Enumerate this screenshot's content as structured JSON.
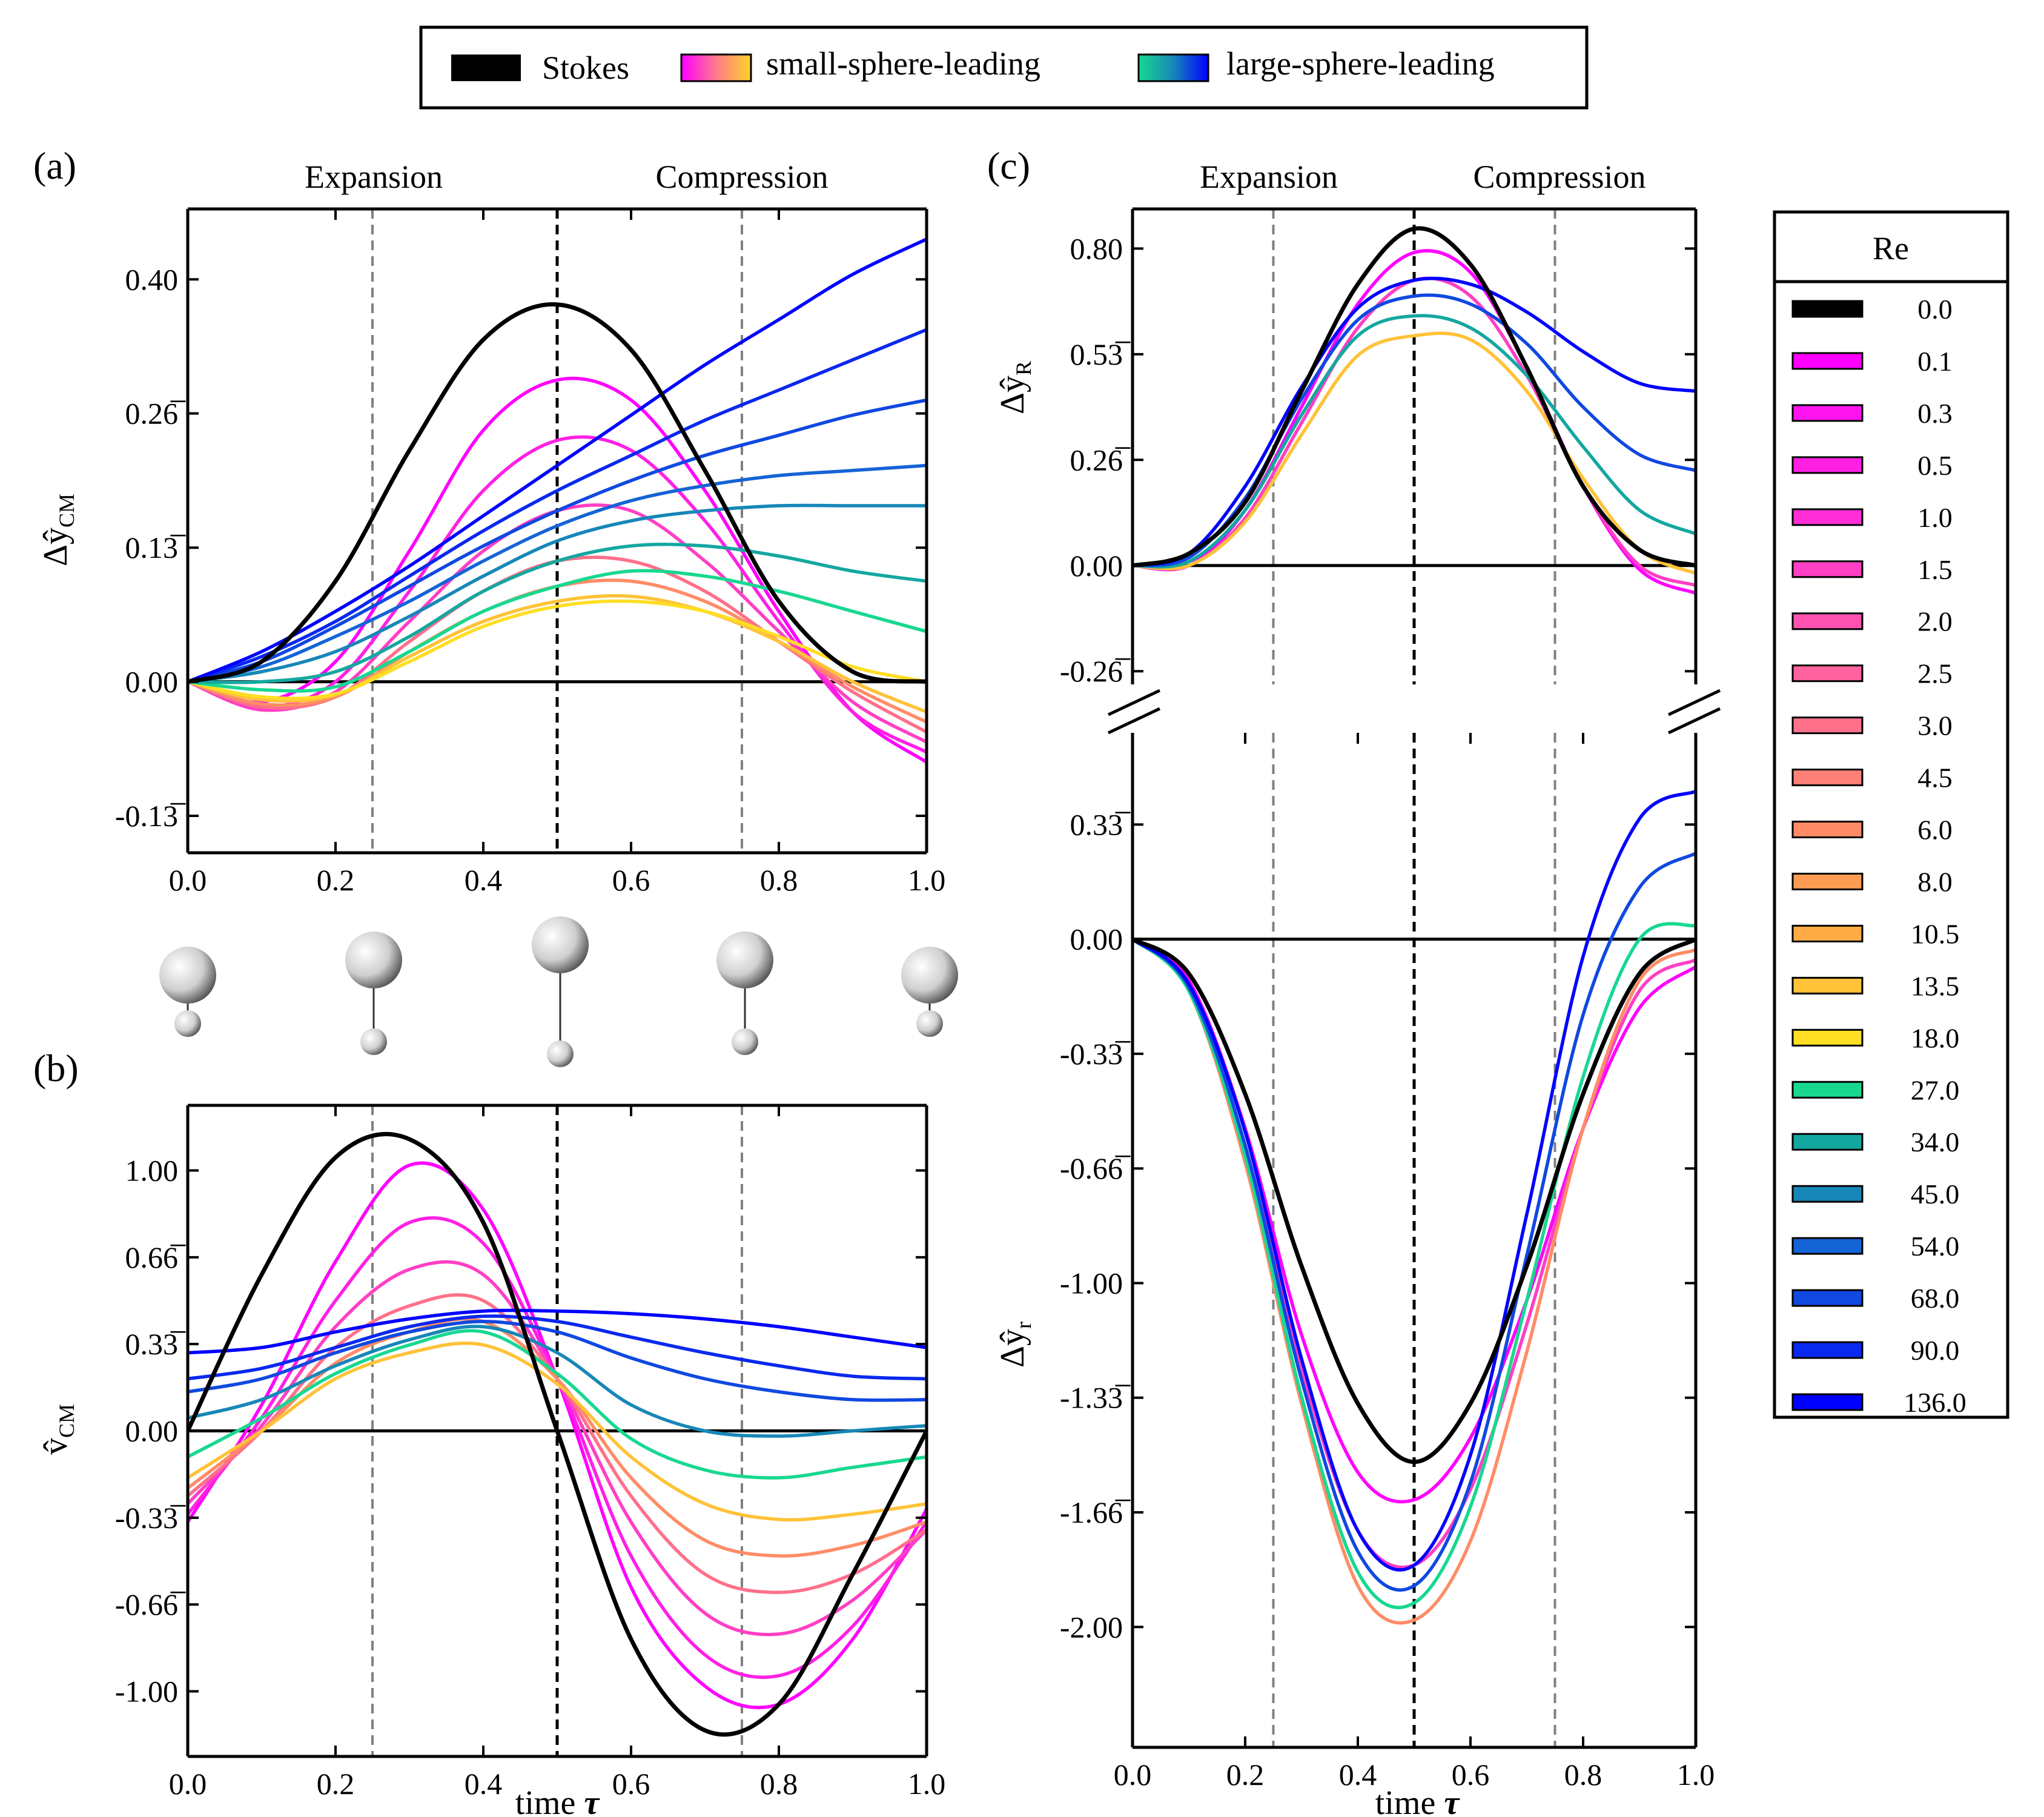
{
  "legend": {
    "stokes": "Stokes",
    "small": "small-sphere-leading",
    "large": "large-sphere-leading"
  },
  "panels": {
    "a": "(a)",
    "b": "(b)",
    "c": "(c)"
  },
  "phases": {
    "expansion": "Expansion",
    "compression": "Compression"
  },
  "axes": {
    "xlabel": "time",
    "xvar": "τ",
    "a_ylabel": "Δŷ",
    "a_ysub": "CM",
    "b_ylabel": "v̂",
    "b_ysub": "CM",
    "cR_ylabel": "Δŷ",
    "cR_ysub": "R",
    "cr_ylabel": "Δŷ",
    "cr_ysub": "r"
  },
  "colors": {
    "stokes": "#000000",
    "vline_center": "#000000",
    "vline_quarter": "#808080",
    "small_gradient": [
      "#ff00ff",
      "#ff55c8",
      "#ff7a8c",
      "#ff9a5a",
      "#ffd42a"
    ],
    "large_gradient": [
      "#18d890",
      "#14a7a0",
      "#1787b8",
      "#1464d6",
      "#0a32e8",
      "#0000ff"
    ]
  },
  "re_legend": {
    "title": "Re",
    "entries": [
      {
        "re": "0.0",
        "color": "#000000"
      },
      {
        "re": "0.1",
        "color": "#ff00ff"
      },
      {
        "re": "0.3",
        "color": "#ff14f0"
      },
      {
        "re": "0.5",
        "color": "#ff20e4"
      },
      {
        "re": "1.0",
        "color": "#ff2ed6"
      },
      {
        "re": "1.5",
        "color": "#ff3fc4"
      },
      {
        "re": "2.0",
        "color": "#ff52b0"
      },
      {
        "re": "2.5",
        "color": "#ff629e"
      },
      {
        "re": "3.0",
        "color": "#ff708a"
      },
      {
        "re": "4.5",
        "color": "#ff8078"
      },
      {
        "re": "6.0",
        "color": "#ff8c66"
      },
      {
        "re": "8.0",
        "color": "#ff9c54"
      },
      {
        "re": "10.5",
        "color": "#ffac46"
      },
      {
        "re": "13.5",
        "color": "#ffc238"
      },
      {
        "re": "18.0",
        "color": "#ffde24"
      },
      {
        "re": "27.0",
        "color": "#18d890"
      },
      {
        "re": "34.0",
        "color": "#14a7a0"
      },
      {
        "re": "45.0",
        "color": "#1787b8"
      },
      {
        "re": "54.0",
        "color": "#1464d6"
      },
      {
        "re": "68.0",
        "color": "#1048e0"
      },
      {
        "re": "90.0",
        "color": "#0a28ee"
      },
      {
        "re": "136.0",
        "color": "#0000ff"
      }
    ]
  },
  "chart_data": [
    {
      "panel": "(a)",
      "type": "line",
      "xlabel": "time τ",
      "ylabel": "Δŷ_CM",
      "xlim": [
        0,
        1
      ],
      "ylim": [
        -0.17,
        0.47
      ],
      "xticks": [
        "0.0",
        "0.2",
        "0.4",
        "0.6",
        "0.8",
        "1.0"
      ],
      "yticks": [
        {
          "v": 0.4,
          "label": "0.40"
        },
        {
          "v": 0.2667,
          "label": "0.26̅"
        },
        {
          "v": 0.1333,
          "label": "0.13̅"
        },
        {
          "v": 0.0,
          "label": "0.00"
        },
        {
          "v": -0.1333,
          "label": "-0.13̅"
        }
      ],
      "vlines": [
        0.25,
        0.5,
        0.75
      ],
      "x": [
        0,
        0.1,
        0.2,
        0.3,
        0.4,
        0.5,
        0.6,
        0.7,
        0.8,
        0.9,
        1.0
      ],
      "series": [
        {
          "re": "0.0",
          "values": [
            0,
            0.02,
            0.1,
            0.23,
            0.34,
            0.375,
            0.33,
            0.21,
            0.08,
            0.01,
            0.0
          ]
        },
        {
          "re": "0.1",
          "values": [
            0,
            -0.02,
            0.02,
            0.13,
            0.25,
            0.3,
            0.28,
            0.19,
            0.07,
            -0.03,
            -0.08
          ]
        },
        {
          "re": "0.5",
          "values": [
            0,
            -0.025,
            0.0,
            0.09,
            0.19,
            0.24,
            0.23,
            0.16,
            0.06,
            -0.03,
            -0.07
          ]
        },
        {
          "re": "1.5",
          "values": [
            0,
            -0.028,
            -0.01,
            0.06,
            0.13,
            0.17,
            0.17,
            0.12,
            0.05,
            -0.02,
            -0.06
          ]
        },
        {
          "re": "3.0",
          "values": [
            0,
            -0.025,
            -0.015,
            0.04,
            0.09,
            0.12,
            0.12,
            0.09,
            0.04,
            -0.01,
            -0.05
          ]
        },
        {
          "re": "6.0",
          "values": [
            0,
            -0.022,
            -0.015,
            0.03,
            0.07,
            0.095,
            0.1,
            0.08,
            0.04,
            -0.005,
            -0.04
          ]
        },
        {
          "re": "13.5",
          "values": [
            0,
            -0.018,
            -0.013,
            0.025,
            0.06,
            0.08,
            0.085,
            0.07,
            0.04,
            0.0,
            -0.03
          ]
        },
        {
          "re": "18.0",
          "values": [
            0,
            -0.015,
            -0.012,
            0.02,
            0.055,
            0.075,
            0.08,
            0.07,
            0.045,
            0.015,
            0.0
          ]
        },
        {
          "re": "27.0",
          "values": [
            0,
            -0.008,
            -0.005,
            0.03,
            0.07,
            0.095,
            0.11,
            0.105,
            0.09,
            0.07,
            0.05
          ]
        },
        {
          "re": "34.0",
          "values": [
            0,
            0.0,
            0.01,
            0.045,
            0.09,
            0.12,
            0.135,
            0.135,
            0.125,
            0.11,
            0.1
          ]
        },
        {
          "re": "45.0",
          "values": [
            0,
            0.01,
            0.03,
            0.065,
            0.105,
            0.14,
            0.16,
            0.17,
            0.175,
            0.175,
            0.175
          ]
        },
        {
          "re": "54.0",
          "values": [
            0,
            0.015,
            0.045,
            0.08,
            0.12,
            0.155,
            0.18,
            0.195,
            0.205,
            0.21,
            0.215
          ]
        },
        {
          "re": "68.0",
          "values": [
            0,
            0.02,
            0.055,
            0.095,
            0.135,
            0.17,
            0.2,
            0.225,
            0.245,
            0.265,
            0.28
          ]
        },
        {
          "re": "90.0",
          "values": [
            0,
            0.025,
            0.06,
            0.105,
            0.15,
            0.19,
            0.225,
            0.26,
            0.29,
            0.32,
            0.35
          ]
        },
        {
          "re": "136.0",
          "values": [
            0,
            0.03,
            0.07,
            0.115,
            0.165,
            0.215,
            0.265,
            0.315,
            0.36,
            0.405,
            0.44
          ]
        }
      ]
    },
    {
      "panel": "(b)",
      "type": "line",
      "xlabel": "time τ",
      "ylabel": "v̂_CM",
      "xlim": [
        0,
        1
      ],
      "ylim": [
        -1.25,
        1.25
      ],
      "xticks": [
        "0.0",
        "0.2",
        "0.4",
        "0.6",
        "0.8",
        "1.0"
      ],
      "yticks": [
        {
          "v": 1.0,
          "label": "1.00"
        },
        {
          "v": 0.6667,
          "label": "0.66̅"
        },
        {
          "v": 0.3333,
          "label": "0.33̅"
        },
        {
          "v": 0.0,
          "label": "0.00"
        },
        {
          "v": -0.3333,
          "label": "-0.33̅"
        },
        {
          "v": -0.6667,
          "label": "-0.66̅"
        },
        {
          "v": -1.0,
          "label": "-1.00"
        }
      ],
      "vlines": [
        0.25,
        0.5,
        0.75
      ],
      "x": [
        0,
        0.1,
        0.2,
        0.3,
        0.4,
        0.5,
        0.6,
        0.7,
        0.8,
        0.9,
        1.0
      ],
      "series": [
        {
          "re": "0.0",
          "values": [
            0.0,
            0.6,
            1.05,
            1.12,
            0.8,
            0.0,
            -0.8,
            -1.15,
            -1.05,
            -0.55,
            0.0
          ]
        },
        {
          "re": "0.1",
          "values": [
            -0.35,
            0.1,
            0.65,
            1.02,
            0.85,
            0.2,
            -0.6,
            -0.98,
            -1.05,
            -0.8,
            -0.3
          ]
        },
        {
          "re": "0.5",
          "values": [
            -0.32,
            0.05,
            0.5,
            0.8,
            0.72,
            0.2,
            -0.48,
            -0.86,
            -0.94,
            -0.75,
            -0.35
          ]
        },
        {
          "re": "1.5",
          "values": [
            -0.28,
            0.02,
            0.4,
            0.62,
            0.6,
            0.2,
            -0.35,
            -0.7,
            -0.78,
            -0.65,
            -0.38
          ]
        },
        {
          "re": "3.0",
          "values": [
            -0.25,
            0.0,
            0.32,
            0.48,
            0.5,
            0.2,
            -0.25,
            -0.55,
            -0.62,
            -0.55,
            -0.38
          ]
        },
        {
          "re": "6.0",
          "values": [
            -0.22,
            0.0,
            0.26,
            0.38,
            0.42,
            0.2,
            -0.18,
            -0.42,
            -0.48,
            -0.44,
            -0.35
          ]
        },
        {
          "re": "13.5",
          "values": [
            -0.18,
            0.0,
            0.2,
            0.3,
            0.33,
            0.18,
            -0.1,
            -0.28,
            -0.34,
            -0.32,
            -0.28
          ]
        },
        {
          "re": "27.0",
          "values": [
            -0.1,
            0.05,
            0.22,
            0.33,
            0.38,
            0.22,
            -0.03,
            -0.15,
            -0.18,
            -0.14,
            -0.1
          ]
        },
        {
          "re": "45.0",
          "values": [
            0.05,
            0.12,
            0.25,
            0.35,
            0.4,
            0.3,
            0.1,
            0.0,
            -0.02,
            0.0,
            0.02
          ]
        },
        {
          "re": "68.0",
          "values": [
            0.15,
            0.2,
            0.3,
            0.38,
            0.42,
            0.38,
            0.28,
            0.2,
            0.15,
            0.12,
            0.12
          ]
        },
        {
          "re": "90.0",
          "values": [
            0.2,
            0.24,
            0.32,
            0.4,
            0.44,
            0.42,
            0.36,
            0.3,
            0.25,
            0.21,
            0.2
          ]
        },
        {
          "re": "136.0",
          "values": [
            0.3,
            0.32,
            0.38,
            0.43,
            0.46,
            0.46,
            0.45,
            0.43,
            0.4,
            0.36,
            0.32
          ]
        }
      ]
    },
    {
      "panel": "(c) upper",
      "type": "line",
      "ylabel": "Δŷ_R",
      "xlim": [
        0,
        1
      ],
      "ylim": [
        -0.3,
        0.9
      ],
      "yticks": [
        {
          "v": 0.8,
          "label": "0.80"
        },
        {
          "v": 0.5333,
          "label": "0.53̅"
        },
        {
          "v": 0.2667,
          "label": "0.26̅"
        },
        {
          "v": 0.0,
          "label": "0.00"
        },
        {
          "v": -0.2667,
          "label": "-0.26̅"
        }
      ],
      "vlines": [
        0.25,
        0.5,
        0.75
      ],
      "x": [
        0,
        0.1,
        0.2,
        0.3,
        0.4,
        0.5,
        0.6,
        0.7,
        0.8,
        0.9,
        1.0
      ],
      "series": [
        {
          "re": "0.0",
          "values": [
            0,
            0.03,
            0.16,
            0.44,
            0.71,
            0.85,
            0.76,
            0.5,
            0.2,
            0.04,
            0.0
          ]
        },
        {
          "re": "0.1",
          "values": [
            0,
            0.0,
            0.14,
            0.4,
            0.66,
            0.79,
            0.74,
            0.5,
            0.2,
            -0.01,
            -0.07
          ]
        },
        {
          "re": "1.5",
          "values": [
            0,
            0.0,
            0.12,
            0.36,
            0.6,
            0.72,
            0.68,
            0.48,
            0.2,
            0.0,
            -0.05
          ]
        },
        {
          "re": "13.5",
          "values": [
            0,
            0.0,
            0.11,
            0.33,
            0.53,
            0.58,
            0.57,
            0.44,
            0.22,
            0.04,
            -0.02
          ]
        },
        {
          "re": "34.0",
          "values": [
            0,
            0.01,
            0.14,
            0.38,
            0.58,
            0.63,
            0.6,
            0.48,
            0.3,
            0.14,
            0.08
          ]
        },
        {
          "re": "68.0",
          "values": [
            0,
            0.02,
            0.17,
            0.42,
            0.62,
            0.68,
            0.66,
            0.56,
            0.4,
            0.28,
            0.24
          ]
        },
        {
          "re": "136.0",
          "values": [
            0,
            0.03,
            0.2,
            0.45,
            0.65,
            0.72,
            0.71,
            0.64,
            0.54,
            0.46,
            0.44
          ]
        }
      ]
    },
    {
      "panel": "(c) lower",
      "type": "line",
      "xlabel": "time τ",
      "ylabel": "Δŷ_r",
      "xlim": [
        0,
        1
      ],
      "ylim": [
        -2.35,
        0.6
      ],
      "xticks": [
        "0.0",
        "0.2",
        "0.4",
        "0.6",
        "0.8",
        "1.0"
      ],
      "yticks": [
        {
          "v": 0.3333,
          "label": "0.33̅"
        },
        {
          "v": 0.0,
          "label": "0.00"
        },
        {
          "v": -0.3333,
          "label": "-0.33̅"
        },
        {
          "v": -0.6667,
          "label": "-0.66̅"
        },
        {
          "v": -1.0,
          "label": "-1.00"
        },
        {
          "v": -1.3333,
          "label": "-1.33̅"
        },
        {
          "v": -1.6667,
          "label": "-1.66̅"
        },
        {
          "v": -2.0,
          "label": "-2.00"
        }
      ],
      "vlines": [
        0.25,
        0.5,
        0.75
      ],
      "x": [
        0,
        0.1,
        0.2,
        0.3,
        0.4,
        0.5,
        0.6,
        0.7,
        0.8,
        0.9,
        1.0
      ],
      "series": [
        {
          "re": "0.0",
          "values": [
            0,
            -0.1,
            -0.45,
            -0.95,
            -1.35,
            -1.52,
            -1.35,
            -0.95,
            -0.45,
            -0.1,
            0.0
          ]
        },
        {
          "re": "0.1",
          "values": [
            0,
            -0.12,
            -0.55,
            -1.15,
            -1.55,
            -1.63,
            -1.45,
            -1.05,
            -0.55,
            -0.2,
            -0.08
          ]
        },
        {
          "re": "1.5",
          "values": [
            0,
            -0.14,
            -0.6,
            -1.25,
            -1.72,
            -1.82,
            -1.6,
            -1.12,
            -0.55,
            -0.15,
            -0.06
          ]
        },
        {
          "re": "6.0",
          "values": [
            0,
            -0.15,
            -0.65,
            -1.35,
            -1.88,
            -1.98,
            -1.75,
            -1.2,
            -0.55,
            -0.12,
            -0.03
          ]
        },
        {
          "re": "27.0",
          "values": [
            0,
            -0.15,
            -0.63,
            -1.33,
            -1.84,
            -1.93,
            -1.65,
            -1.05,
            -0.4,
            0.0,
            0.04
          ]
        },
        {
          "re": "68.0",
          "values": [
            0,
            -0.14,
            -0.6,
            -1.28,
            -1.78,
            -1.88,
            -1.58,
            -0.92,
            -0.22,
            0.15,
            0.25
          ]
        },
        {
          "re": "136.0",
          "values": [
            0,
            -0.13,
            -0.56,
            -1.22,
            -1.72,
            -1.82,
            -1.5,
            -0.8,
            -0.05,
            0.35,
            0.43
          ]
        }
      ]
    }
  ]
}
